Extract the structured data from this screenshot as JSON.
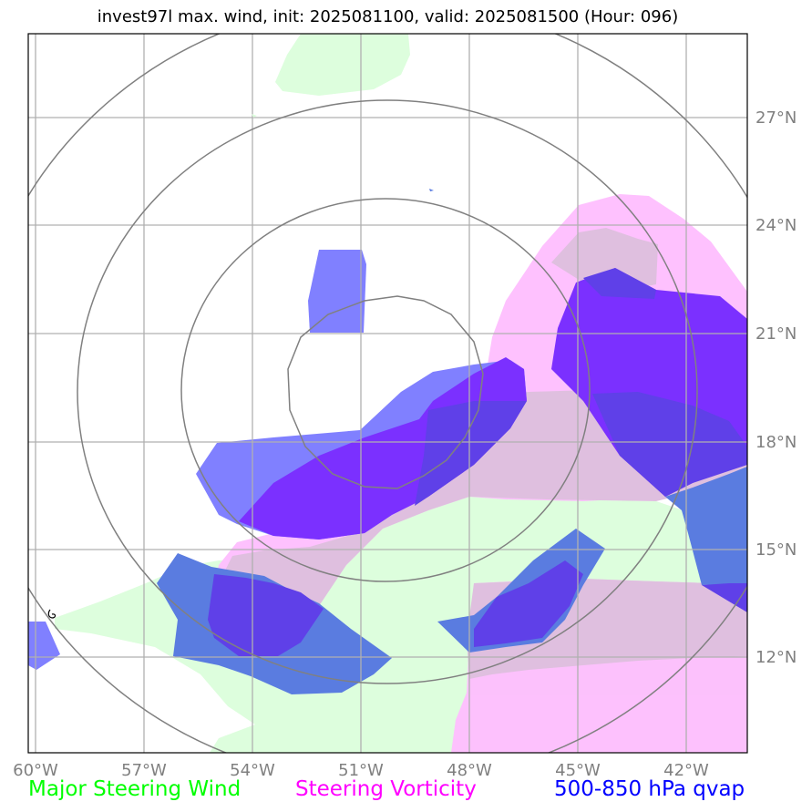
{
  "title": "invest97l max. wind, init: 2025081100, valid: 2025081500 (Hour: 096)",
  "lon_labels": [
    "60°W",
    "57°W",
    "54°W",
    "51°W",
    "48°W",
    "45°W",
    "42°W"
  ],
  "lat_labels": [
    "27°N",
    "24°N",
    "21°N",
    "18°N",
    "15°N",
    "12°N"
  ],
  "legend": [
    {
      "label": "Major Steering Wind",
      "color": "#00ff00"
    },
    {
      "label": "Steering Vorticity",
      "color": "#ff00ff"
    },
    {
      "label": "500-850 hPa qvap",
      "color": "#0000ff"
    }
  ],
  "colors": {
    "wind_fill": "#ddfedd",
    "vorticity_fill": "#febefe",
    "qvap_fill": "#4000ff",
    "range_ring": "#808080",
    "grid": "#b0b0b0"
  }
}
